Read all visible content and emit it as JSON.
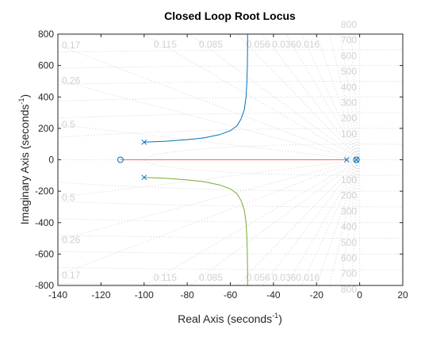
{
  "chart_data": {
    "type": "line",
    "title": "Closed Loop Root Locus",
    "xlabel": "Real Axis (seconds",
    "ylabel": "Imaginary Axis (seconds",
    "axis_unit_exponent": "-1",
    "xlim": [
      -140,
      20
    ],
    "ylim": [
      -800,
      800
    ],
    "x_ticks": [
      -140,
      -120,
      -100,
      -80,
      -60,
      -40,
      -20,
      0,
      20
    ],
    "y_ticks": [
      -800,
      -600,
      -400,
      -200,
      0,
      200,
      400,
      600,
      800
    ],
    "grid": true,
    "colors": {
      "branch_upper": "#0072bd",
      "branch_lower": "#77ac30",
      "branch_real": "#ff6464",
      "markers": "#0072bd",
      "grid": "#d9d9d9",
      "grid_labels": "#d0d0d0"
    },
    "damping_labels_left": [
      {
        "text": "0.17",
        "y": 730
      },
      {
        "text": "0.26",
        "y": 505
      },
      {
        "text": "0.5",
        "y": 225
      },
      {
        "text": "0.5",
        "y": -240
      },
      {
        "text": "0.26",
        "y": -510
      },
      {
        "text": "0.17",
        "y": -735
      }
    ],
    "damping_labels_top": [
      {
        "text": "0.115",
        "x": -100
      },
      {
        "text": "0.085",
        "x": -79
      },
      {
        "text": "0.056",
        "x": -57
      },
      {
        "text": "0.036",
        "x": -45
      },
      {
        "text": "0.016",
        "x": -34
      }
    ],
    "damping_labels_bottom": [
      {
        "text": "0.115",
        "x": -100
      },
      {
        "text": "0.085",
        "x": -79
      },
      {
        "text": "0.056",
        "x": -57
      },
      {
        "text": "0.036",
        "x": -45
      },
      {
        "text": "0.016",
        "x": -34
      }
    ],
    "frequency_labels": [
      "800",
      "700",
      "600",
      "500",
      "400",
      "300",
      "200",
      "100",
      "100",
      "200",
      "300",
      "400",
      "500",
      "600",
      "700",
      "800"
    ],
    "series": [
      {
        "points": [
          [
            -100,
            112
          ],
          [
            -90,
            118
          ],
          [
            -80,
            128
          ],
          [
            -72,
            140
          ],
          [
            -65,
            160
          ],
          [
            -60,
            185
          ],
          [
            -57,
            215
          ],
          [
            -55,
            260
          ],
          [
            -53.5,
            320
          ],
          [
            -52.7,
            400
          ],
          [
            -52.3,
            500
          ],
          [
            -52.1,
            600
          ],
          [
            -52,
            700
          ],
          [
            -52,
            800
          ]
        ]
      },
      {
        "points": [
          [
            -100,
            -112
          ],
          [
            -90,
            -118
          ],
          [
            -80,
            -128
          ],
          [
            -72,
            -140
          ],
          [
            -65,
            -160
          ],
          [
            -60,
            -185
          ],
          [
            -57,
            -215
          ],
          [
            -55,
            -260
          ],
          [
            -53.5,
            -320
          ],
          [
            -52.7,
            -400
          ],
          [
            -52.3,
            -500
          ],
          [
            -52.1,
            -600
          ],
          [
            -52,
            -700
          ],
          [
            -52,
            -800
          ]
        ]
      },
      {
        "points": [
          [
            -111,
            0
          ],
          [
            -6,
            0
          ]
        ]
      }
    ],
    "poles": [
      [
        -100,
        112
      ],
      [
        -100,
        -112
      ],
      [
        -6,
        0
      ],
      [
        -1.5,
        0
      ]
    ],
    "zeros": [
      [
        -111,
        0
      ],
      [
        -1.5,
        0
      ]
    ]
  }
}
